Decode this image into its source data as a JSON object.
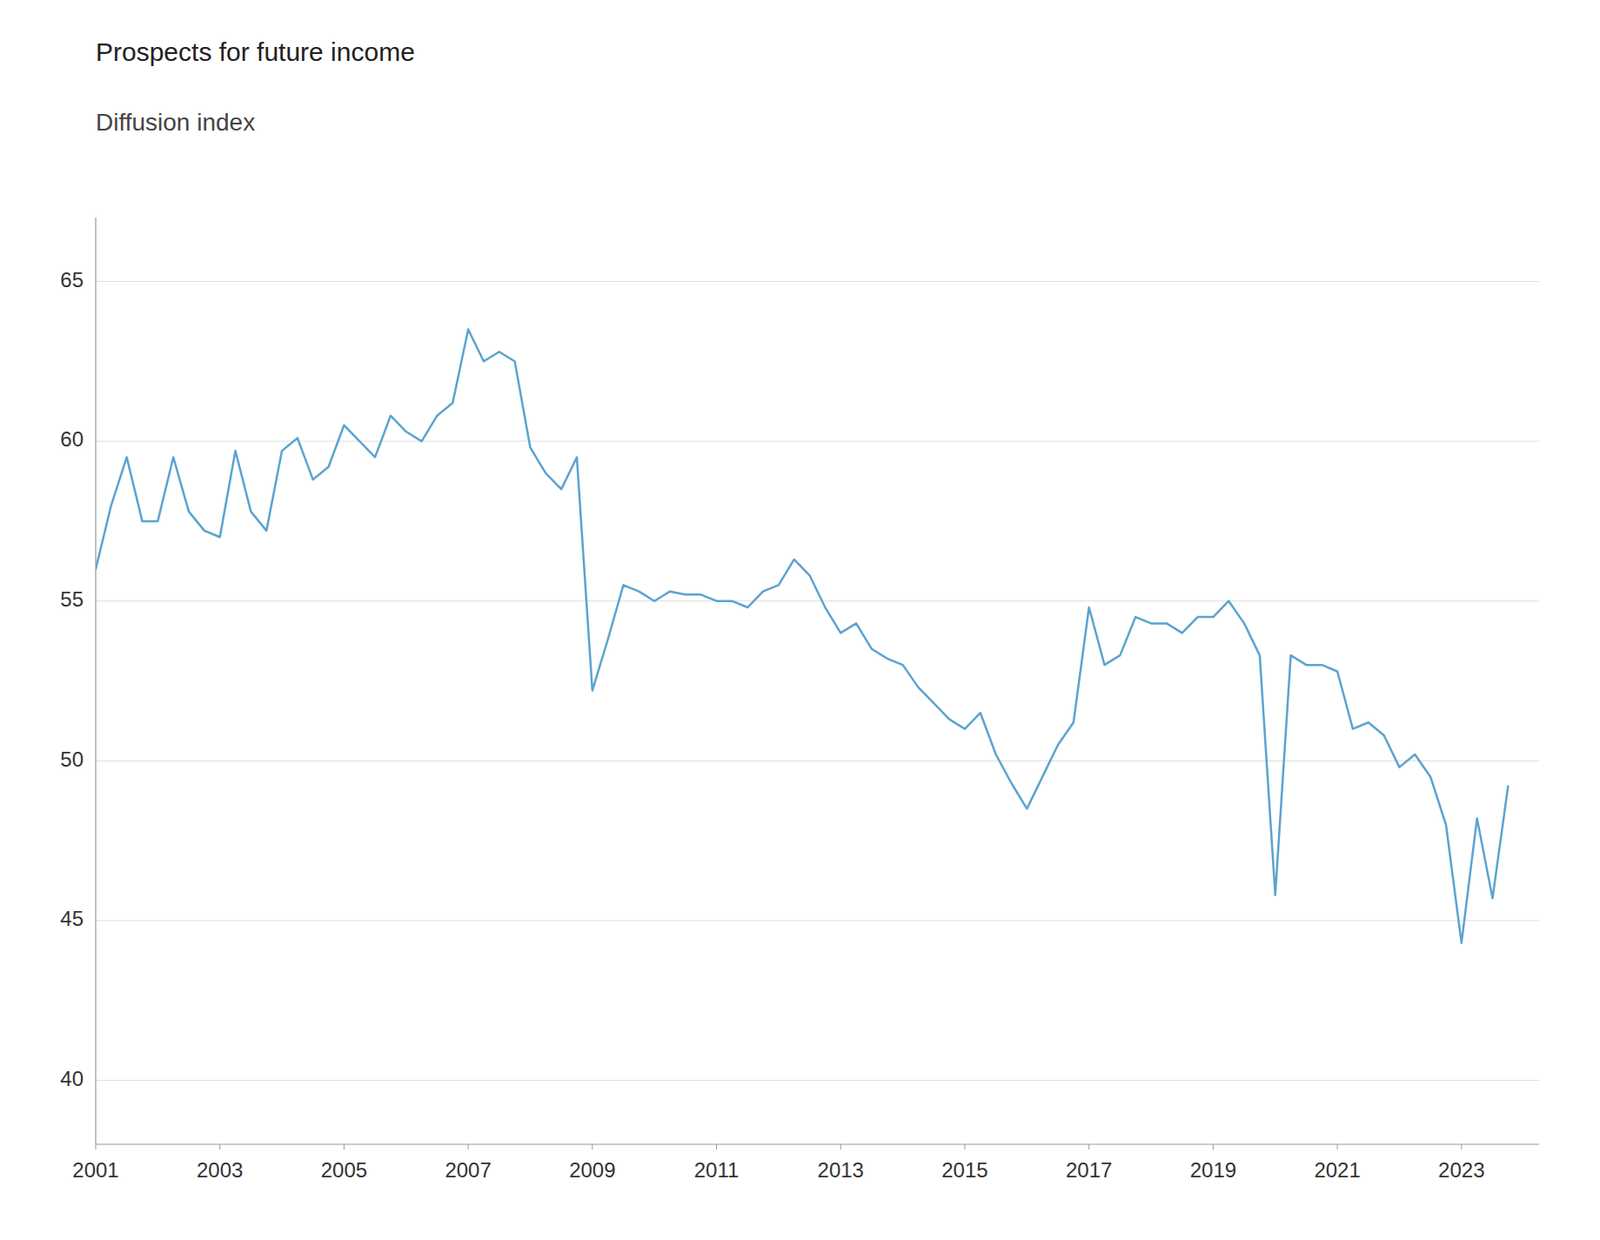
{
  "chart_data": {
    "type": "line",
    "title": "Prospects for future income",
    "subtitle": "Diffusion index",
    "color": "#5BA3D0",
    "grid": true,
    "xlim": [
      2001.0,
      2024.25
    ],
    "xticks": [
      2001,
      2003,
      2005,
      2007,
      2009,
      2011,
      2013,
      2015,
      2017,
      2019,
      2021,
      2023
    ],
    "ylim": [
      38,
      67
    ],
    "yticks": [
      40,
      45,
      50,
      55,
      60,
      65
    ],
    "x": [
      2001.0,
      2001.25,
      2001.5,
      2001.75,
      2002.0,
      2002.25,
      2002.5,
      2002.75,
      2003.0,
      2003.25,
      2003.5,
      2003.75,
      2004.0,
      2004.25,
      2004.5,
      2004.75,
      2005.0,
      2005.25,
      2005.5,
      2005.75,
      2006.0,
      2006.25,
      2006.5,
      2006.75,
      2007.0,
      2007.25,
      2007.5,
      2007.75,
      2008.0,
      2008.25,
      2008.5,
      2008.75,
      2009.0,
      2009.25,
      2009.5,
      2009.75,
      2010.0,
      2010.25,
      2010.5,
      2010.75,
      2011.0,
      2011.25,
      2011.5,
      2011.75,
      2012.0,
      2012.25,
      2012.5,
      2012.75,
      2013.0,
      2013.25,
      2013.5,
      2013.75,
      2014.0,
      2014.25,
      2014.5,
      2014.75,
      2015.0,
      2015.25,
      2015.5,
      2015.75,
      2016.0,
      2016.25,
      2016.5,
      2016.75,
      2017.0,
      2017.25,
      2017.5,
      2017.75,
      2018.0,
      2018.25,
      2018.5,
      2018.75,
      2019.0,
      2019.25,
      2019.5,
      2019.75,
      2020.0,
      2020.25,
      2020.5,
      2020.75,
      2021.0,
      2021.25,
      2021.5,
      2021.75,
      2022.0,
      2022.25,
      2022.5,
      2022.75,
      2023.0,
      2023.25,
      2023.5,
      2023.75
    ],
    "values": [
      56.0,
      58.0,
      59.5,
      57.5,
      57.5,
      59.5,
      57.8,
      57.2,
      57.0,
      59.7,
      57.8,
      57.2,
      59.7,
      60.1,
      58.8,
      59.2,
      60.5,
      60.0,
      59.5,
      60.8,
      60.3,
      60.0,
      60.8,
      61.2,
      63.5,
      62.5,
      62.8,
      62.5,
      59.8,
      59.0,
      58.5,
      59.5,
      52.2,
      53.8,
      55.5,
      55.3,
      55.0,
      55.3,
      55.2,
      55.2,
      55.0,
      55.0,
      54.8,
      55.3,
      55.5,
      56.3,
      55.8,
      54.8,
      54.0,
      54.3,
      53.5,
      53.2,
      53.0,
      52.3,
      51.8,
      51.3,
      51.0,
      51.5,
      50.2,
      49.3,
      48.5,
      49.5,
      50.5,
      51.2,
      54.8,
      53.0,
      53.3,
      54.5,
      54.3,
      54.3,
      54.0,
      54.5,
      54.5,
      55.0,
      54.3,
      53.3,
      45.8,
      53.3,
      53.0,
      53.0,
      52.8,
      51.0,
      51.2,
      50.8,
      49.8,
      50.2,
      49.5,
      48.0,
      44.3,
      48.2,
      45.7,
      49.2
    ]
  }
}
